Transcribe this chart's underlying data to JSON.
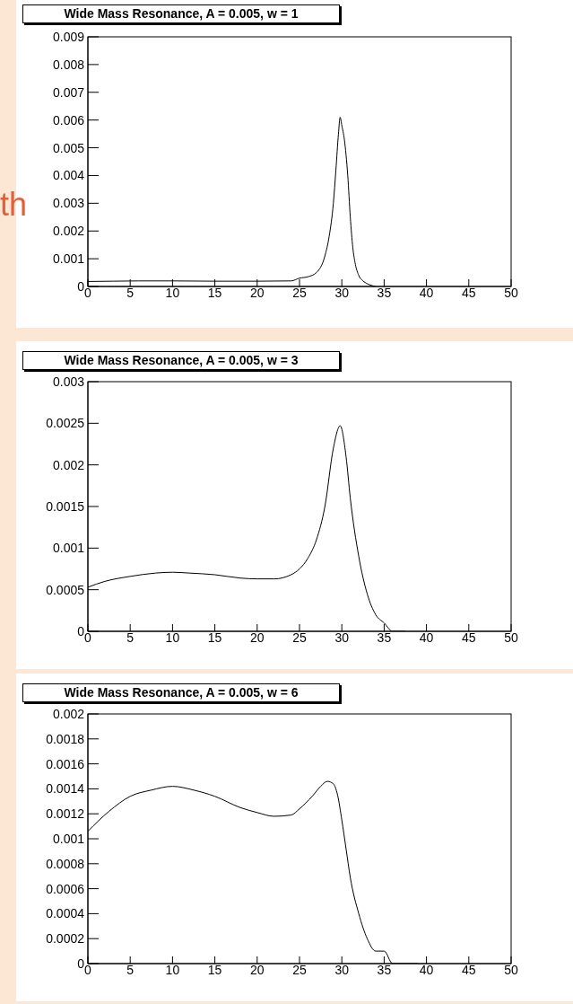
{
  "chart_data": [
    {
      "type": "line",
      "title": "Wide Mass Resonance, A = 0.005, w = 1",
      "annotations": [
        "th"
      ],
      "x": [
        0,
        3,
        6,
        10,
        15,
        20,
        24,
        25,
        26,
        27,
        28,
        28.5,
        29,
        29.3,
        29.6,
        29.8,
        30,
        30.3,
        30.7,
        31,
        31.3,
        31.6,
        32,
        32.5,
        33,
        34
      ],
      "series": [
        {
          "color": "#000000",
          "values": [
            0.00018,
            0.00019,
            0.0002,
            0.0002,
            0.00019,
            0.00019,
            0.0002,
            0.0003,
            0.00035,
            0.0005,
            0.0011,
            0.0018,
            0.003,
            0.0042,
            0.0055,
            0.0061,
            0.0058,
            0.0053,
            0.004,
            0.0025,
            0.0014,
            0.0008,
            0.0004,
            0.0002,
            0.0001,
            0
          ]
        }
      ],
      "xlim": [
        0,
        50
      ],
      "xticks": [
        0,
        5,
        10,
        15,
        20,
        25,
        30,
        35,
        40,
        45,
        50
      ],
      "ylim": [
        0,
        0.009
      ],
      "yticks": [
        0,
        0.001,
        0.002,
        0.003,
        0.004,
        0.005,
        0.006,
        0.007,
        0.008,
        0.009
      ],
      "grid": false,
      "legend": false
    },
    {
      "type": "line",
      "title": "Wide Mass Resonance, A = 0.005, w = 3",
      "x": [
        0,
        2,
        5,
        8,
        10,
        12,
        15,
        18,
        20,
        22,
        24,
        25,
        26,
        27,
        28,
        29,
        29.8,
        30.5,
        31,
        32,
        33,
        34,
        35,
        36,
        37.5
      ],
      "series": [
        {
          "color": "#000000",
          "values": [
            0.00053,
            0.0006,
            0.00066,
            0.0007,
            0.00071,
            0.0007,
            0.00068,
            0.00064,
            0.00063,
            0.00063,
            0.00068,
            0.00075,
            0.00088,
            0.0011,
            0.0015,
            0.0022,
            0.00247,
            0.0021,
            0.0016,
            0.0009,
            0.00045,
            0.0002,
            0.0001,
            0,
            0
          ]
        }
      ],
      "xlim": [
        0,
        50
      ],
      "xticks": [
        0,
        5,
        10,
        15,
        20,
        25,
        30,
        35,
        40,
        45,
        50
      ],
      "ylim": [
        0,
        0.003
      ],
      "yticks": [
        0,
        0.0005,
        0.001,
        0.0015,
        0.002,
        0.0025,
        0.003
      ],
      "grid": false,
      "legend": false
    },
    {
      "type": "line",
      "title": "Wide Mass Resonance, A = 0.005, w = 6",
      "x": [
        0,
        2.5,
        5,
        7.5,
        10,
        12.5,
        15,
        18,
        20,
        22,
        24,
        25,
        26.5,
        27.5,
        28.3,
        29,
        29.5,
        30,
        30.5,
        31,
        32,
        33,
        34,
        35,
        36,
        37,
        39
      ],
      "series": [
        {
          "color": "#000000",
          "values": [
            0.00106,
            0.00122,
            0.00134,
            0.00139,
            0.00142,
            0.00139,
            0.00134,
            0.00125,
            0.00121,
            0.00118,
            0.00119,
            0.00124,
            0.00134,
            0.00142,
            0.00146,
            0.00144,
            0.00135,
            0.00115,
            0.00092,
            0.00069,
            0.0004,
            0.0002,
            0.0001,
            0.0001,
            0,
            0,
            0
          ]
        }
      ],
      "xlim": [
        0,
        50
      ],
      "xticks": [
        0,
        5,
        10,
        15,
        20,
        25,
        30,
        35,
        40,
        45,
        50
      ],
      "ylim": [
        0,
        0.002
      ],
      "yticks": [
        0,
        0.0002,
        0.0004,
        0.0006,
        0.0008,
        0.001,
        0.0012,
        0.0014,
        0.0016,
        0.0018,
        0.002
      ],
      "grid": false,
      "legend": false
    }
  ]
}
